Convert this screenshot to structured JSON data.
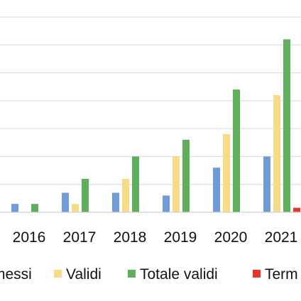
{
  "chart_data": {
    "type": "bar",
    "categories": [
      "2016",
      "2017",
      "2018",
      "2019",
      "2020",
      "2021"
    ],
    "series": [
      {
        "name": "…messi",
        "color": "#6F9BD9",
        "values": [
          1.5,
          3.5,
          3.5,
          3,
          8,
          10
        ]
      },
      {
        "name": "Validi",
        "color": "#F7DC88",
        "values": [
          0,
          1.5,
          6,
          10,
          14,
          21
        ]
      },
      {
        "name": "Totale validi",
        "color": "#5FAE5C",
        "values": [
          1.5,
          6,
          10,
          13,
          22,
          31
        ]
      },
      {
        "name": "Term…",
        "color": "#E8342C",
        "values": [
          0,
          0,
          0,
          0,
          0,
          0.8
        ]
      }
    ],
    "ylim": [
      0,
      35
    ],
    "gridlines": [
      0,
      5,
      10,
      15,
      20,
      25,
      30,
      35
    ],
    "grid": true,
    "legend_position": "bottom"
  }
}
